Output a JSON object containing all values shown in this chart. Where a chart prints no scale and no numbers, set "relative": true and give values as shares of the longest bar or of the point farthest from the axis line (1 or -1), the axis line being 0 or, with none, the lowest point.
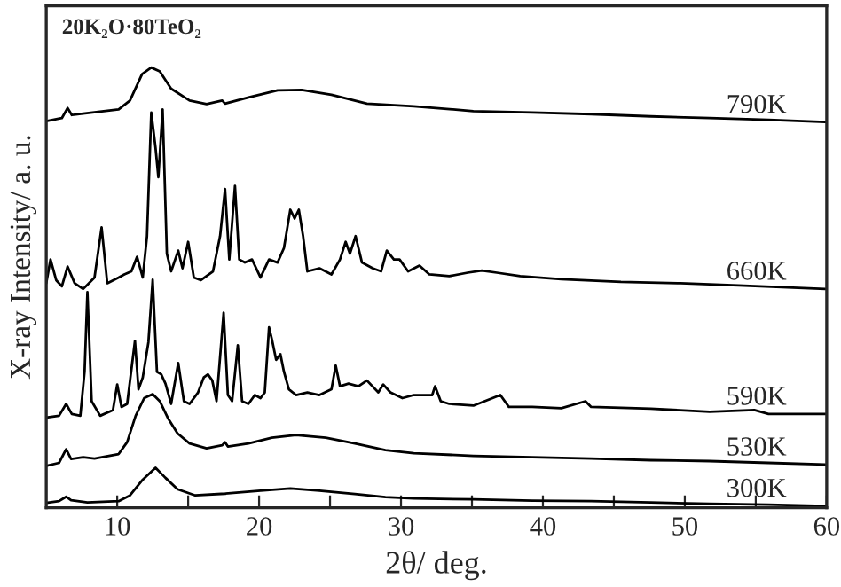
{
  "chart_data": {
    "type": "line",
    "title": "20K₂O·80TeO₂",
    "xlabel": "2θ/ deg.",
    "ylabel": "X-ray Intensity/ a. u.",
    "relative": true,
    "xlim": [
      5,
      60
    ],
    "xticks": [
      10,
      {
        "value": 15,
        "label": null
      },
      20,
      {
        "value": 25,
        "label": null
      },
      30,
      {
        "value": 35,
        "label": null
      },
      40,
      {
        "value": 45,
        "label": null
      },
      50,
      {
        "value": 55,
        "label": null
      },
      60
    ],
    "legend": false,
    "grid": false,
    "marker": "none",
    "line_style": "solid",
    "series": [
      {
        "name": "790K",
        "color": "#000000",
        "x": [
          5.0,
          6.1,
          6.5,
          6.8,
          7.2,
          10.1,
          10.9,
          11.75,
          12.4,
          13.0,
          13.8,
          15.1,
          16.3,
          17.4,
          17.6,
          19.25,
          21.3,
          23.0,
          25.1,
          27.6,
          30.9,
          35.1,
          39.25,
          43.4,
          47.6,
          51.75,
          55.9,
          59.9
        ],
        "values": [
          0.878,
          0.885,
          0.908,
          0.892,
          0.894,
          0.905,
          0.925,
          0.985,
          1.0,
          0.991,
          0.952,
          0.925,
          0.917,
          0.925,
          0.918,
          0.932,
          0.948,
          0.949,
          0.938,
          0.918,
          0.912,
          0.901,
          0.898,
          0.894,
          0.889,
          0.885,
          0.881,
          0.876
        ]
      },
      {
        "name": "660K",
        "color": "#000000",
        "x": [
          5.0,
          5.3,
          5.7,
          6.1,
          6.5,
          7.0,
          7.6,
          8.0,
          8.4,
          8.9,
          9.3,
          10.1,
          10.5,
          11.0,
          11.4,
          11.8,
          12.1,
          12.4,
          12.7,
          12.9,
          13.2,
          13.5,
          13.8,
          14.3,
          14.6,
          15.0,
          15.4,
          15.9,
          16.75,
          17.25,
          17.6,
          17.9,
          18.3,
          18.6,
          19.0,
          19.5,
          20.1,
          20.7,
          21.3,
          21.75,
          22.2,
          22.5,
          22.8,
          23.1,
          23.4,
          24.25,
          25.1,
          25.7,
          26.1,
          26.4,
          26.8,
          27.25,
          28.0,
          28.6,
          29.0,
          29.5,
          29.9,
          30.5,
          31.3,
          32.0,
          33.4,
          34.7,
          35.7,
          36.75,
          38.4,
          41.3,
          45.5,
          49.7,
          53.8,
          59.9
        ],
        "values": [
          0.51,
          0.564,
          0.517,
          0.503,
          0.548,
          0.51,
          0.497,
          0.51,
          0.523,
          0.637,
          0.51,
          0.523,
          0.53,
          0.537,
          0.57,
          0.523,
          0.617,
          0.898,
          0.818,
          0.751,
          0.905,
          0.577,
          0.537,
          0.584,
          0.544,
          0.604,
          0.523,
          0.517,
          0.537,
          0.617,
          0.724,
          0.564,
          0.731,
          0.564,
          0.557,
          0.564,
          0.523,
          0.564,
          0.557,
          0.59,
          0.677,
          0.657,
          0.677,
          0.617,
          0.537,
          0.544,
          0.53,
          0.564,
          0.604,
          0.577,
          0.617,
          0.557,
          0.544,
          0.537,
          0.584,
          0.564,
          0.564,
          0.537,
          0.55,
          0.53,
          0.526,
          0.534,
          0.539,
          0.534,
          0.526,
          0.519,
          0.513,
          0.51,
          0.505,
          0.497
        ]
      },
      {
        "name": "590K",
        "color": "#000000",
        "x": [
          5.0,
          5.9,
          6.4,
          6.8,
          7.4,
          7.7,
          7.9,
          8.2,
          8.8,
          9.7,
          10.0,
          10.3,
          10.7,
          11.25,
          11.5,
          11.8,
          12.2,
          12.5,
          12.8,
          13.1,
          13.4,
          13.8,
          14.3,
          14.7,
          15.1,
          15.7,
          16.1,
          16.4,
          16.7,
          17.0,
          17.5,
          17.8,
          18.1,
          18.5,
          18.8,
          19.25,
          19.7,
          20.1,
          20.4,
          20.7,
          20.9,
          21.2,
          21.5,
          21.75,
          22.1,
          22.6,
          23.4,
          24.25,
          25.1,
          25.4,
          25.7,
          26.3,
          27.0,
          27.6,
          28.4,
          28.75,
          29.25,
          30.1,
          30.9,
          32.2,
          32.4,
          32.8,
          33.4,
          35.1,
          37.0,
          37.6,
          39.25,
          41.3,
          43.0,
          43.4,
          47.6,
          51.75,
          54.9,
          55.9,
          59.9
        ],
        "values": [
          0.205,
          0.209,
          0.236,
          0.213,
          0.209,
          0.309,
          0.49,
          0.242,
          0.209,
          0.222,
          0.28,
          0.229,
          0.236,
          0.379,
          0.269,
          0.296,
          0.376,
          0.518,
          0.309,
          0.303,
          0.282,
          0.236,
          0.329,
          0.242,
          0.236,
          0.262,
          0.296,
          0.303,
          0.289,
          0.242,
          0.443,
          0.256,
          0.242,
          0.369,
          0.242,
          0.236,
          0.256,
          0.249,
          0.262,
          0.41,
          0.383,
          0.336,
          0.349,
          0.309,
          0.269,
          0.256,
          0.262,
          0.256,
          0.269,
          0.323,
          0.276,
          0.282,
          0.276,
          0.289,
          0.262,
          0.28,
          0.262,
          0.249,
          0.256,
          0.256,
          0.276,
          0.242,
          0.236,
          0.232,
          0.256,
          0.229,
          0.229,
          0.226,
          0.242,
          0.229,
          0.225,
          0.218,
          0.222,
          0.213,
          0.213
        ]
      },
      {
        "name": "530K",
        "color": "#000000",
        "x": [
          5.0,
          5.9,
          6.4,
          6.75,
          7.6,
          8.4,
          10.1,
          10.7,
          11.3,
          11.9,
          12.5,
          13.0,
          13.6,
          14.25,
          15.1,
          16.3,
          17.4,
          17.6,
          17.8,
          19.25,
          20.9,
          22.6,
          24.7,
          26.75,
          28.9,
          30.9,
          35.1,
          39.25,
          43.4,
          47.6,
          51.75,
          55.9,
          59.9
        ],
        "values": [
          0.095,
          0.102,
          0.133,
          0.111,
          0.115,
          0.112,
          0.122,
          0.149,
          0.209,
          0.249,
          0.258,
          0.242,
          0.202,
          0.169,
          0.146,
          0.135,
          0.142,
          0.149,
          0.139,
          0.146,
          0.159,
          0.165,
          0.159,
          0.146,
          0.131,
          0.124,
          0.118,
          0.115,
          0.112,
          0.108,
          0.106,
          0.102,
          0.098
        ]
      },
      {
        "name": "300K",
        "color": "#000000",
        "x": [
          5.0,
          5.9,
          6.4,
          6.75,
          7.9,
          10.1,
          10.9,
          11.75,
          12.7,
          13.4,
          14.25,
          15.5,
          17.6,
          20.1,
          22.2,
          24.25,
          26.75,
          28.9,
          30.9,
          35.1,
          39.25,
          43.4,
          47.6,
          51.75,
          55.9,
          59.9
        ],
        "values": [
          0.011,
          0.015,
          0.025,
          0.017,
          0.012,
          0.015,
          0.028,
          0.062,
          0.091,
          0.068,
          0.042,
          0.028,
          0.032,
          0.039,
          0.044,
          0.039,
          0.031,
          0.024,
          0.021,
          0.019,
          0.016,
          0.015,
          0.012,
          0.009,
          0.007,
          0.004
        ]
      }
    ]
  }
}
